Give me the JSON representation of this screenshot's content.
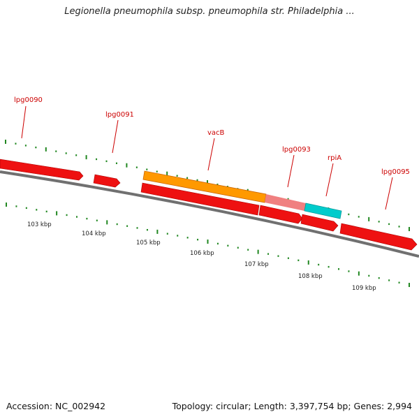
{
  "title": "Legionella pneumophila subsp. pneumophila str. Philadelphia ...",
  "footer": {
    "accession": "Accession: NC_002942",
    "stats": "Topology: circular; Length: 3,397,754 bp; Genes: 2,994"
  },
  "colors": {
    "cds_forward": "#ee1111",
    "cds_reverse": "#ee1111",
    "vacB_highlight": "#ff9900",
    "rpiA_highlight": "#00cccc",
    "pseudo_highlight": "#f08080",
    "backbone": "#808080",
    "tick": "#228822",
    "label": "#cc0000"
  },
  "gene_labels": [
    "lpg0090",
    "lpg0091",
    "vacB",
    "lpg0093",
    "rpiA",
    "lpg0095"
  ],
  "kbp_labels": [
    "103 kbp",
    "104 kbp",
    "105 kbp",
    "106 kbp",
    "107 kbp",
    "108 kbp",
    "109 kbp"
  ]
}
